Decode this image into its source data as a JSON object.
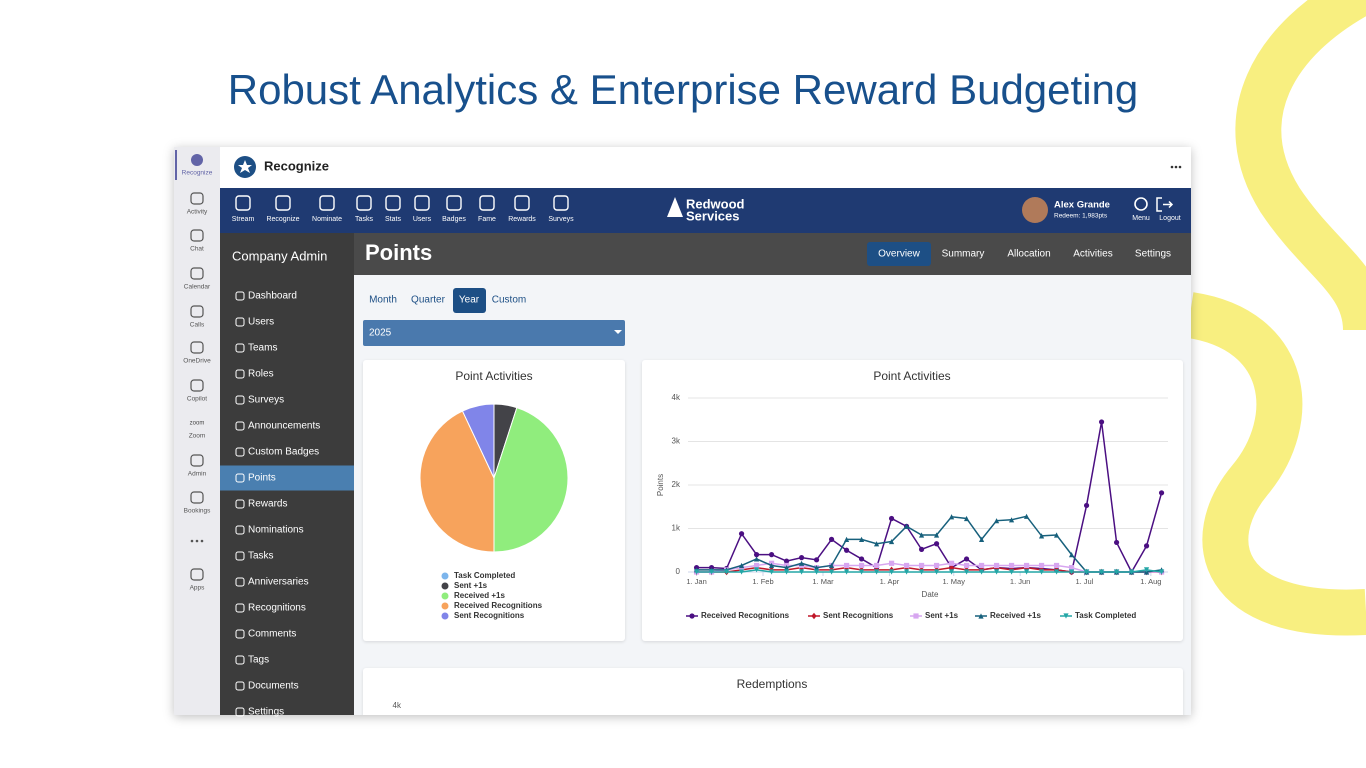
{
  "headline": "Robust Analytics & Enterprise Reward Budgeting",
  "rail": {
    "items": [
      "Recognize",
      "Activity",
      "Chat",
      "Calendar",
      "Calls",
      "OneDrive",
      "Copilot",
      "Zoom",
      "Admin",
      "Bookings",
      "Apps"
    ],
    "zoom_logo": "zoom",
    "active": 0
  },
  "app": {
    "name": "Recognize"
  },
  "nav": {
    "items": [
      "Stream",
      "Recognize",
      "Nominate",
      "Tasks",
      "Stats",
      "Users",
      "Badges",
      "Fame",
      "Rewards",
      "Surveys"
    ],
    "brand": [
      "Redwood",
      "Services"
    ],
    "user": "Alex Grande",
    "redeem": "Redeem: 1,983pts",
    "right": [
      "Menu",
      "Logout"
    ]
  },
  "sidebar": {
    "title": "Company Admin",
    "items": [
      "Dashboard",
      "Users",
      "Teams",
      "Roles",
      "Surveys",
      "Announcements",
      "Custom Badges",
      "Points",
      "Rewards",
      "Nominations",
      "Tasks",
      "Anniversaries",
      "Recognitions",
      "Comments",
      "Tags",
      "Documents",
      "Settings"
    ],
    "active": 7
  },
  "page": {
    "title": "Points",
    "tabs": [
      "Overview",
      "Summary",
      "Allocation",
      "Activities",
      "Settings"
    ],
    "active_tab": 0,
    "periods": [
      "Month",
      "Quarter",
      "Year",
      "Custom"
    ],
    "active_period": 2,
    "year": "2025"
  },
  "charts": [
    {
      "type": "pie",
      "title": "Point Activities",
      "categories": [
        "Task Completed",
        "Sent +1s",
        "Received +1s",
        "Received Recognitions",
        "Sent Recognitions"
      ],
      "values": [
        0,
        5,
        45,
        43,
        7
      ],
      "colors": [
        "#7cb5ec",
        "#434348",
        "#90ed7d",
        "#f7a35c",
        "#8085e9"
      ]
    },
    {
      "type": "line",
      "title": "Point Activities",
      "x_label": "Date",
      "y_label": "Points",
      "x": [
        0,
        7,
        14,
        21,
        28,
        35,
        42,
        49,
        56,
        63,
        70,
        77,
        84,
        91,
        98,
        105,
        112,
        119,
        126,
        133,
        140,
        147,
        154,
        161,
        168,
        175,
        182,
        189,
        196,
        203,
        210,
        217
      ],
      "xlim": [
        -4,
        220
      ],
      "xticks": [
        {
          "value": 0,
          "label": "1. Jan"
        },
        {
          "value": 31,
          "label": "1. Feb"
        },
        {
          "value": 59,
          "label": "1. Mar"
        },
        {
          "value": 90,
          "label": "1. Apr"
        },
        {
          "value": 120,
          "label": "1. May"
        },
        {
          "value": 151,
          "label": "1. Jun"
        },
        {
          "value": 181,
          "label": "1. Jul"
        },
        {
          "value": 212,
          "label": "1. Aug"
        }
      ],
      "ylim": [
        0,
        4000
      ],
      "yticks": [
        0,
        {
          "value": 1000,
          "label": "1k"
        },
        {
          "value": 2000,
          "label": "2k"
        },
        {
          "value": 3000,
          "label": "3k"
        },
        {
          "value": 4000,
          "label": "4k"
        }
      ],
      "grid": true,
      "series": [
        {
          "name": "Received Recognitions",
          "color": "#4b0f82",
          "marker": "circle",
          "values": [
            100,
            100,
            80,
            880,
            400,
            400,
            250,
            330,
            280,
            750,
            500,
            300,
            100,
            1230,
            1050,
            520,
            650,
            100,
            300,
            50,
            100,
            80,
            100,
            80,
            50,
            0,
            1530,
            3450,
            680,
            0,
            600,
            1820
          ]
        },
        {
          "name": "Sent Recognitions",
          "color": "#c0182a",
          "marker": "diamond",
          "values": [
            0,
            0,
            0,
            50,
            100,
            50,
            50,
            100,
            50,
            50,
            100,
            50,
            50,
            50,
            100,
            50,
            50,
            100,
            50,
            50,
            100,
            50,
            100,
            50,
            50,
            0,
            0,
            0,
            0,
            0,
            0,
            0
          ]
        },
        {
          "name": "Sent +1s",
          "color": "#d7a6f0",
          "marker": "square",
          "values": [
            0,
            0,
            50,
            100,
            150,
            200,
            150,
            150,
            100,
            150,
            150,
            150,
            150,
            200,
            150,
            150,
            150,
            200,
            150,
            150,
            150,
            150,
            150,
            150,
            150,
            100,
            0,
            0,
            0,
            0,
            0,
            0
          ]
        },
        {
          "name": "Received +1s",
          "color": "#17607c",
          "marker": "triangle",
          "values": [
            50,
            50,
            50,
            150,
            300,
            150,
            100,
            200,
            100,
            150,
            750,
            750,
            650,
            700,
            1050,
            850,
            850,
            1270,
            1230,
            750,
            1180,
            1200,
            1280,
            830,
            850,
            400,
            0,
            0,
            0,
            0,
            0,
            50
          ]
        },
        {
          "name": "Task Completed",
          "color": "#23a6a6",
          "marker": "triangle-down",
          "values": [
            0,
            0,
            0,
            0,
            50,
            0,
            0,
            0,
            0,
            0,
            0,
            0,
            0,
            0,
            0,
            0,
            0,
            0,
            0,
            0,
            0,
            0,
            0,
            0,
            0,
            0,
            0,
            0,
            0,
            0,
            50,
            0
          ]
        }
      ]
    },
    {
      "type": "line",
      "title": "Redemptions",
      "yticks": [
        {
          "value": 4000,
          "label": "4k"
        }
      ]
    }
  ]
}
